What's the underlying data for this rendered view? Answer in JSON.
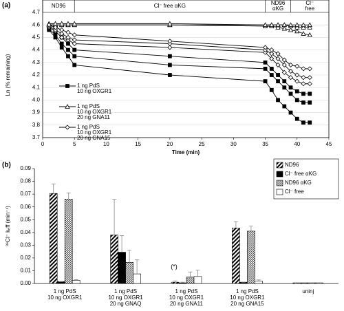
{
  "chart_data": [
    {
      "type": "line",
      "panel": "(a)",
      "x_label": "Time (min)",
      "y_label": "Ln (% remaining)",
      "xlim": [
        0,
        45
      ],
      "ylim": [
        3.7,
        4.7
      ],
      "xticks": [
        0,
        5,
        10,
        15,
        20,
        25,
        30,
        35,
        40,
        45
      ],
      "yticks": [
        3.7,
        3.8,
        3.9,
        {
          "value": 4.0,
          "label": "4.0"
        },
        4.1,
        4.2,
        4.3,
        4.4,
        4.5,
        4.6,
        4.7
      ],
      "grid": true,
      "phases": [
        {
          "label": [
            "ND96"
          ],
          "start": 0,
          "end": 5
        },
        {
          "label": [
            "Cl⁻ free αKG"
          ],
          "start": 5,
          "end": 35
        },
        {
          "label": [
            "ND96",
            "αKG"
          ],
          "start": 35,
          "end": 39
        },
        {
          "label": [
            "Cl⁻",
            "free"
          ],
          "start": 39,
          "end": 45
        }
      ],
      "x": [
        1,
        2,
        3,
        4,
        5,
        20,
        35,
        36,
        37,
        38,
        39,
        40,
        41,
        42
      ],
      "series": [
        {
          "name": [
            "1 ng PdS",
            "10 ng OXGR1"
          ],
          "marker": "square-filled",
          "color": "#000",
          "replicates": [
            [
              4.56,
              4.5,
              4.42,
              4.35,
              4.28,
              4.2,
              4.15,
              4.08,
              4.0,
              3.95,
              3.9,
              3.85,
              3.82,
              3.82
            ],
            [
              4.57,
              4.52,
              4.45,
              4.4,
              4.35,
              4.28,
              4.25,
              4.2,
              4.15,
              4.1,
              4.05,
              4.0,
              3.98,
              3.98
            ],
            [
              4.58,
              4.55,
              4.5,
              4.45,
              4.4,
              4.35,
              4.3,
              4.25,
              4.2,
              4.15,
              4.1,
              4.07,
              4.05,
              4.05
            ]
          ]
        },
        {
          "name": [
            "1 ng PdS",
            "10 ng OXGR1",
            "20 ng GNA11"
          ],
          "marker": "triangle-open",
          "color": "#000",
          "replicates": [
            [
              4.6,
              4.6,
              4.6,
              4.6,
              4.6,
              4.6,
              4.59,
              4.59,
              4.58,
              4.57,
              4.56,
              4.55,
              4.53,
              4.52
            ],
            [
              4.6,
              4.6,
              4.6,
              4.6,
              4.6,
              4.6,
              4.6,
              4.6,
              4.6,
              4.6,
              4.59,
              4.58,
              4.58,
              4.58
            ],
            [
              4.61,
              4.61,
              4.61,
              4.61,
              4.61,
              4.61,
              4.6,
              4.6,
              4.6,
              4.6,
              4.6,
              4.6,
              4.6,
              4.6
            ]
          ]
        },
        {
          "name": [
            "1 ng PdS",
            "10 ng OXGR1",
            "20 ng GNA15"
          ],
          "marker": "diamond-open",
          "color": "#000",
          "replicates": [
            [
              4.58,
              4.55,
              4.5,
              4.48,
              4.45,
              4.42,
              4.38,
              4.33,
              4.28,
              4.22,
              4.18,
              4.15,
              4.13,
              4.13
            ],
            [
              4.59,
              4.56,
              4.53,
              4.5,
              4.48,
              4.45,
              4.4,
              4.37,
              4.33,
              4.28,
              4.23,
              4.2,
              4.18,
              4.18
            ],
            [
              4.6,
              4.58,
              4.56,
              4.54,
              4.52,
              4.47,
              4.42,
              4.4,
              4.37,
              4.32,
              4.28,
              4.27,
              4.25,
              4.25
            ]
          ]
        }
      ]
    },
    {
      "type": "bar",
      "panel": "(b)",
      "y_label": "³⁶Cl⁻ kₑff (min⁻¹)",
      "ylim": [
        0,
        0.09
      ],
      "yticks": [
        {
          "value": 0,
          "label": "0.00"
        },
        0.01,
        0.02,
        0.03,
        0.04,
        0.05,
        0.06,
        0.07,
        0.08,
        0.09
      ],
      "categories": [
        [
          "1 ng PdS",
          "10 ng OXGR1"
        ],
        [
          "1 ng PdS",
          "10 ng OXGR1",
          "20 ng GNAQ"
        ],
        [
          "1 ng PdS",
          "10 ng OXGR1",
          "20 ng GNA11"
        ],
        [
          "1 ng PdS",
          "10 ng OXGR1",
          "20 ng GNA15"
        ],
        [
          "uninj"
        ]
      ],
      "annotation": {
        "text": "(*)",
        "category": 2
      },
      "series": [
        {
          "name": "ND96",
          "fill": "diagonal",
          "values": [
            0.0705,
            0.038,
            0.001,
            0.0435,
            0.0005
          ],
          "errors": [
            0.0075,
            0.028,
            0.001,
            0.005,
            0
          ]
        },
        {
          "name": "Cl⁻ free αKG",
          "fill": "solid",
          "values": [
            0.0015,
            0.0245,
            0.0005,
            0.001,
            0.0005
          ],
          "errors": [
            0,
            0.013,
            0.0005,
            0,
            0
          ]
        },
        {
          "name": "ND96 αKG",
          "fill": "crosshatch",
          "values": [
            0.066,
            0.0165,
            0.005,
            0.041,
            0.0005
          ],
          "errors": [
            0.005,
            0.0095,
            0.004,
            0.004,
            0
          ]
        },
        {
          "name": "Cl⁻ free",
          "fill": "white",
          "values": [
            0.0025,
            0.0075,
            0.0055,
            0.002,
            0.0005
          ],
          "errors": [
            0.0005,
            0.011,
            0.005,
            0.0008,
            0
          ]
        }
      ]
    }
  ]
}
